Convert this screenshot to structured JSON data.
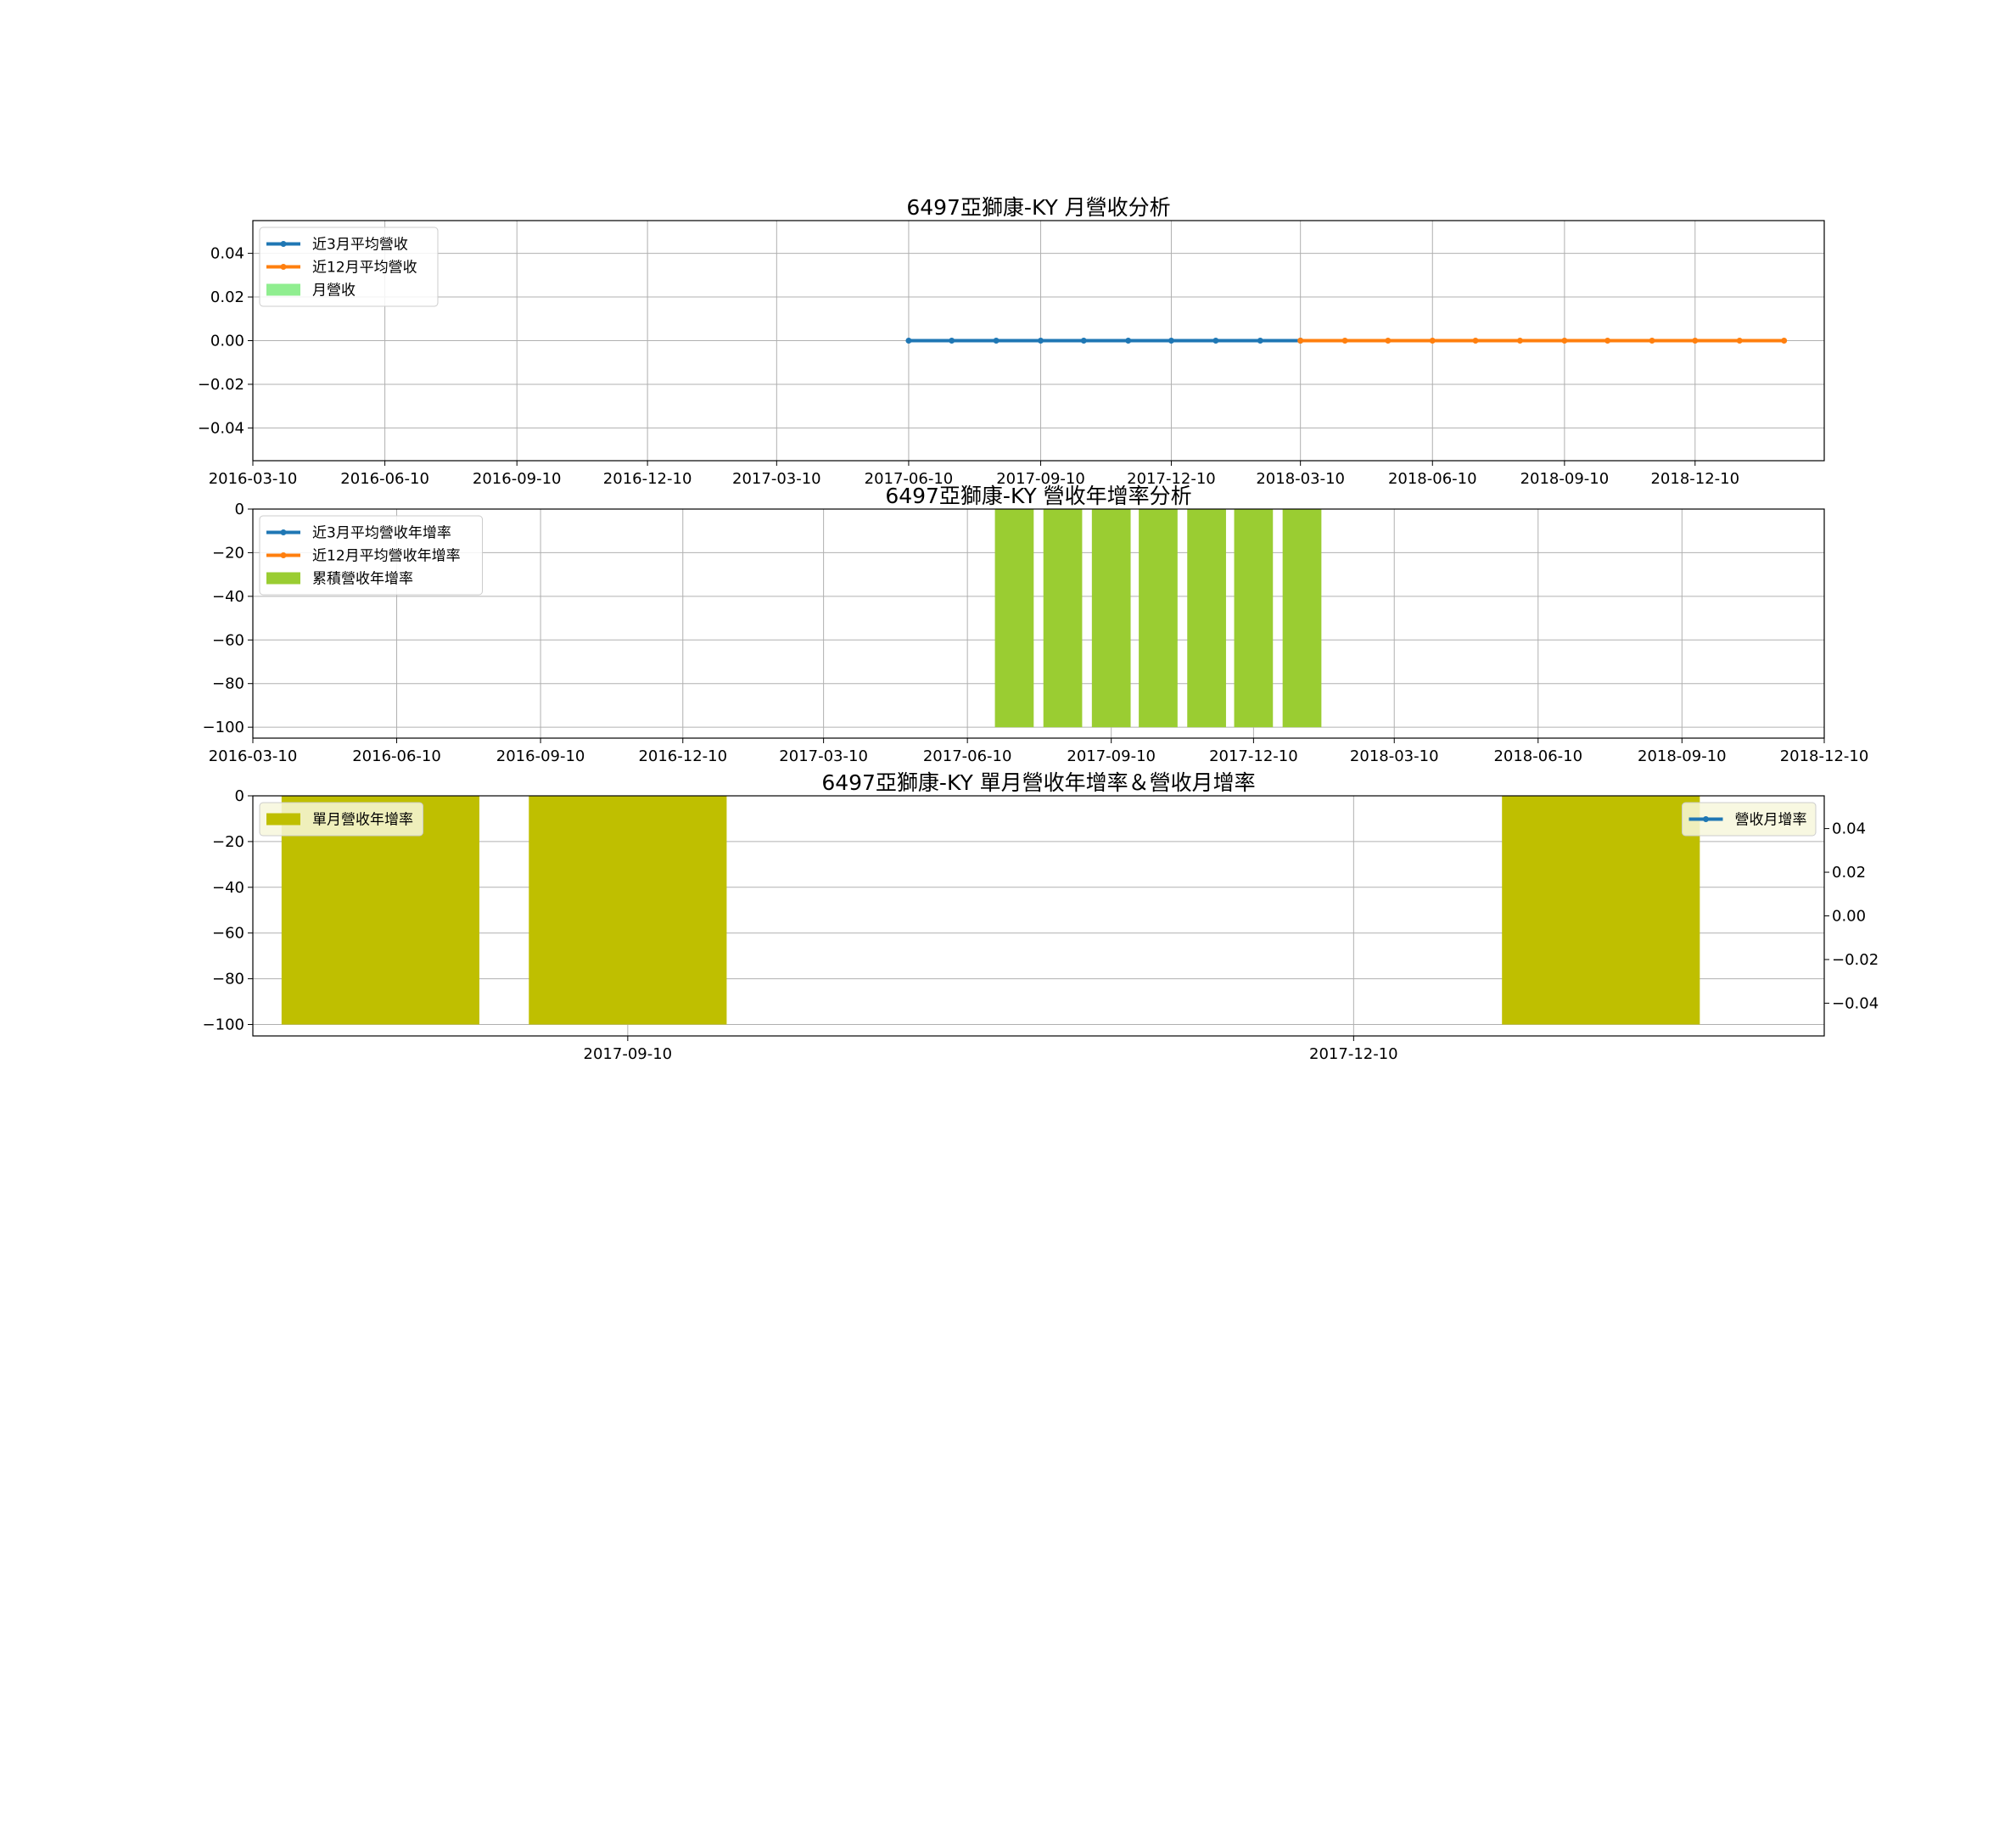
{
  "chart_data": [
    {
      "type": "line",
      "title": "6497亞獅康-KY 月營收分析",
      "x_type": "date",
      "xlim": [
        "2016-03-10",
        "2019-03-10"
      ],
      "xticks": [
        "2016-03-10",
        "2016-06-10",
        "2016-09-10",
        "2016-12-10",
        "2017-03-10",
        "2017-06-10",
        "2017-09-10",
        "2017-12-10",
        "2018-03-10",
        "2018-06-10",
        "2018-09-10",
        "2018-12-10"
      ],
      "ylim": [
        -0.055,
        0.055
      ],
      "yticks": [
        -0.04,
        -0.02,
        0.0,
        0.02,
        0.04
      ],
      "ytick_labels": [
        "−0.04",
        "−0.02",
        "0.00",
        "0.02",
        "0.04"
      ],
      "grid": true,
      "legend": "upper-left",
      "legend_entries": [
        {
          "label": "近3月平均營收",
          "color": "#1f77b4",
          "kind": "line"
        },
        {
          "label": "近12月平均營收",
          "color": "#ff7f0e",
          "kind": "line"
        },
        {
          "label": "月營收",
          "color": "#90ee90",
          "kind": "bar"
        }
      ],
      "series": [
        {
          "name": "近3月平均營收",
          "color": "#1f77b4",
          "x": [
            "2017-06-10",
            "2017-07-10",
            "2017-08-10",
            "2017-09-10",
            "2017-10-10",
            "2017-11-10",
            "2017-12-10",
            "2018-01-10",
            "2018-02-10",
            "2018-03-10"
          ],
          "y": [
            0,
            0,
            0,
            0,
            0,
            0,
            0,
            0,
            0,
            0
          ]
        },
        {
          "name": "近12月平均營收",
          "color": "#ff7f0e",
          "x": [
            "2018-03-10",
            "2018-04-10",
            "2018-05-10",
            "2018-06-10",
            "2018-07-10",
            "2018-08-10",
            "2018-09-10",
            "2018-10-10",
            "2018-11-10",
            "2018-12-10",
            "2019-01-10",
            "2019-02-10"
          ],
          "y": [
            0,
            0,
            0,
            0,
            0,
            0,
            0,
            0,
            0,
            0,
            0,
            0
          ]
        }
      ]
    },
    {
      "type": "bar",
      "title": "6497亞獅康-KY 營收年增率分析",
      "x_type": "date",
      "xlim": [
        "2016-03-10",
        "2018-12-10"
      ],
      "xticks": [
        "2016-03-10",
        "2016-06-10",
        "2016-09-10",
        "2016-12-10",
        "2017-03-10",
        "2017-06-10",
        "2017-09-10",
        "2017-12-10",
        "2018-03-10",
        "2018-06-10",
        "2018-09-10",
        "2018-12-10"
      ],
      "ylim": [
        -105,
        0
      ],
      "yticks": [
        -100,
        -80,
        -60,
        -40,
        -20,
        0
      ],
      "ytick_labels": [
        "−100",
        "−80",
        "−60",
        "−40",
        "−20",
        "0"
      ],
      "grid": true,
      "legend": "upper-left",
      "legend_entries": [
        {
          "label": "近3月平均營收年增率",
          "color": "#1f77b4",
          "kind": "line"
        },
        {
          "label": "近12月平均營收年增率",
          "color": "#ff7f0e",
          "kind": "line"
        },
        {
          "label": "累積營收年增率",
          "color": "#9acd32",
          "kind": "bar"
        }
      ],
      "series": [
        {
          "name": "累積營收年增率",
          "color": "#9acd32",
          "x": [
            "2017-07-10",
            "2017-08-10",
            "2017-09-10",
            "2017-10-10",
            "2017-11-10",
            "2017-12-10",
            "2018-01-10"
          ],
          "y": [
            -100,
            -100,
            -100,
            -100,
            -100,
            -100,
            -100
          ]
        }
      ]
    },
    {
      "type": "bar",
      "title": "6497亞獅康-KY 單月營收年增率＆營收月增率",
      "x_type": "date",
      "xlim": [
        "2017-07-25",
        "2018-02-07"
      ],
      "xticks": [
        "2017-09-10",
        "2017-12-10"
      ],
      "ylim": [
        -105,
        0
      ],
      "yticks": [
        -100,
        -80,
        -60,
        -40,
        -20,
        0
      ],
      "ytick_labels": [
        "−100",
        "−80",
        "−60",
        "−40",
        "−20",
        "0"
      ],
      "y2lim": [
        -0.055,
        0.055
      ],
      "y2ticks": [
        -0.04,
        -0.02,
        0.0,
        0.02,
        0.04
      ],
      "y2tick_labels": [
        "−0.04",
        "−0.02",
        "0.00",
        "0.02",
        "0.04"
      ],
      "grid": true,
      "legend": "upper-left",
      "legend2": "upper-right",
      "legend_entries": [
        {
          "label": "單月營收年增率",
          "color": "#bfbf00",
          "kind": "bar"
        }
      ],
      "legend2_entries": [
        {
          "label": "營收月增率",
          "color": "#1f77b4",
          "kind": "line"
        }
      ],
      "series": [
        {
          "name": "單月營收年增率",
          "color": "#bfbf00",
          "x": [
            "2017-08-10",
            "2017-09-10",
            "2018-01-10"
          ],
          "y": [
            -100,
            -100,
            -100
          ]
        }
      ]
    }
  ]
}
